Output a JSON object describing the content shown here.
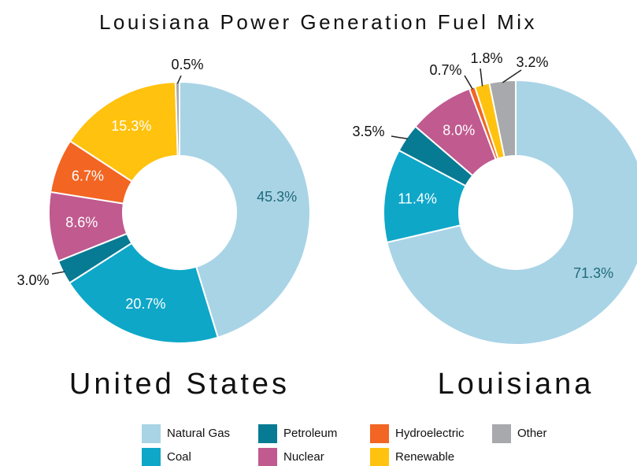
{
  "title": "Louisiana Power Generation Fuel Mix",
  "chart_data": [
    {
      "type": "pie",
      "title": "United States",
      "categories": [
        "Natural Gas",
        "Coal",
        "Petroleum",
        "Nuclear",
        "Hydroelectric",
        "Renewable",
        "Other"
      ],
      "values": [
        45.3,
        20.7,
        3.0,
        8.6,
        6.7,
        15.3,
        0.5
      ],
      "value_labels": [
        "45.3%",
        "20.7%",
        "3.0%",
        "8.6%",
        "6.7%",
        "15.3%",
        "0.5%"
      ],
      "colors": [
        "#a9d4e6",
        "#0ea7c8",
        "#077b93",
        "#c05a8f",
        "#f26522",
        "#ffc20e",
        "#a7a9ac"
      ]
    },
    {
      "type": "pie",
      "title": "Louisiana",
      "categories": [
        "Natural Gas",
        "Coal",
        "Petroleum",
        "Nuclear",
        "Hydroelectric",
        "Renewable",
        "Other"
      ],
      "values": [
        71.3,
        11.4,
        3.5,
        8.0,
        0.7,
        1.8,
        3.2
      ],
      "value_labels": [
        "71.3%",
        "11.4%",
        "3.5%",
        "8.0%",
        "0.7%",
        "1.8%",
        "3.2%"
      ],
      "colors": [
        "#a9d4e6",
        "#0ea7c8",
        "#077b93",
        "#c05a8f",
        "#f26522",
        "#ffc20e",
        "#a7a9ac"
      ]
    }
  ]
}
